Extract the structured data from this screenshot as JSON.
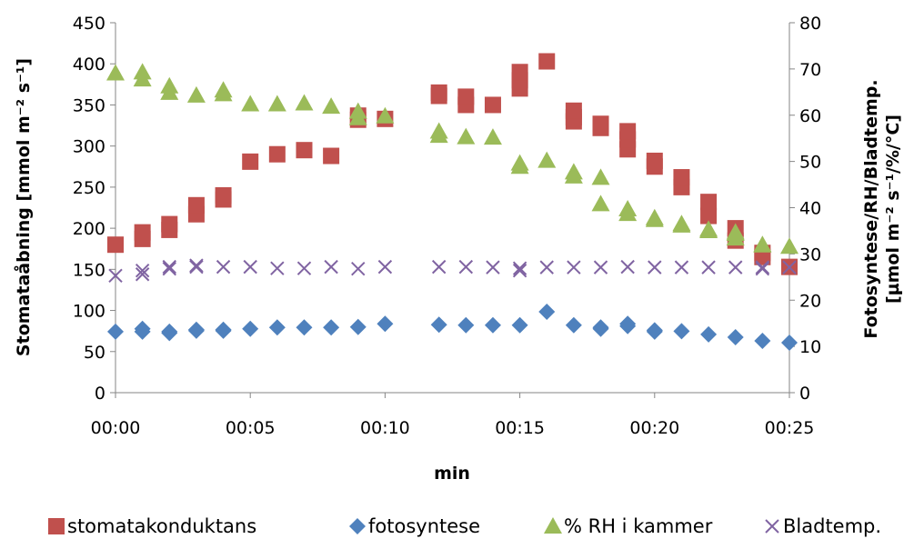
{
  "chart_data": {
    "type": "scatter",
    "xlabel": "min",
    "ylabel_left": "Stomataåbning [mmol m⁻² s⁻¹]",
    "ylabel_right_line1": "Fotosyntese/RH/Bladtemp.",
    "ylabel_right_line2": "[µmol m⁻² s⁻¹/%/°C]",
    "x_tick_labels": [
      "00:00",
      "00:05",
      "00:10",
      "00:15",
      "00:20",
      "00:25"
    ],
    "x_tick_minutes": [
      0,
      5,
      10,
      15,
      20,
      25
    ],
    "xlim_minutes": [
      0,
      25
    ],
    "ylim_left": [
      0,
      450
    ],
    "ylim_right": [
      0,
      80
    ],
    "y_left_ticks": [
      "0",
      "50",
      "100",
      "150",
      "200",
      "250",
      "300",
      "350",
      "400",
      "450"
    ],
    "y_right_ticks": [
      "0",
      "10",
      "20",
      "30",
      "40",
      "50",
      "60",
      "70",
      "80"
    ],
    "grid": false,
    "legend_position": "bottom",
    "series": [
      {
        "name": "stomatakonduktans",
        "axis": "left",
        "marker": "square",
        "color": "#c0504d",
        "points": [
          [
            0,
            180
          ],
          [
            1,
            187
          ],
          [
            1,
            195
          ],
          [
            2,
            198
          ],
          [
            2,
            205
          ],
          [
            3,
            217
          ],
          [
            3,
            228
          ],
          [
            4,
            235
          ],
          [
            4,
            240
          ],
          [
            5,
            281
          ],
          [
            6,
            290
          ],
          [
            7,
            295
          ],
          [
            8,
            288
          ],
          [
            9,
            332
          ],
          [
            9,
            337
          ],
          [
            10,
            333
          ],
          [
            12,
            361
          ],
          [
            12,
            365
          ],
          [
            13,
            350
          ],
          [
            13,
            360
          ],
          [
            14,
            350
          ],
          [
            15,
            370
          ],
          [
            15,
            380
          ],
          [
            15,
            390
          ],
          [
            16,
            403
          ],
          [
            17,
            330
          ],
          [
            17,
            335
          ],
          [
            17,
            343
          ],
          [
            18,
            322
          ],
          [
            18,
            327
          ],
          [
            19,
            296
          ],
          [
            19,
            308
          ],
          [
            19,
            318
          ],
          [
            20,
            275
          ],
          [
            20,
            282
          ],
          [
            21,
            250
          ],
          [
            21,
            262
          ],
          [
            22,
            215
          ],
          [
            22,
            232
          ],
          [
            23,
            185
          ],
          [
            23,
            200
          ],
          [
            24,
            165
          ],
          [
            24,
            170
          ],
          [
            25,
            153
          ]
        ]
      },
      {
        "name": "fotosyntese",
        "axis": "right",
        "marker": "diamond",
        "color": "#4f81bd",
        "points": [
          [
            0,
            13.2
          ],
          [
            1,
            13.2
          ],
          [
            1,
            13.8
          ],
          [
            2,
            12.9
          ],
          [
            2,
            13.2
          ],
          [
            3,
            13.4
          ],
          [
            3,
            13.6
          ],
          [
            4,
            13.4
          ],
          [
            4,
            13.6
          ],
          [
            5,
            13.8
          ],
          [
            6,
            14.1
          ],
          [
            7,
            14.1
          ],
          [
            8,
            14.1
          ],
          [
            9,
            14.2
          ],
          [
            10,
            14.9
          ],
          [
            12,
            14.7
          ],
          [
            13,
            14.6
          ],
          [
            14,
            14.6
          ],
          [
            15,
            14.6
          ],
          [
            16,
            17.5
          ],
          [
            17,
            14.6
          ],
          [
            18,
            13.8
          ],
          [
            18,
            14.1
          ],
          [
            19,
            14.4
          ],
          [
            19,
            14.9
          ],
          [
            20,
            13.2
          ],
          [
            20,
            13.5
          ],
          [
            21,
            13.3
          ],
          [
            22,
            12.6
          ],
          [
            23,
            12.0
          ],
          [
            24,
            11.2
          ],
          [
            25,
            10.8
          ]
        ]
      },
      {
        "name": "% RH i kammer",
        "axis": "right",
        "marker": "triangle",
        "color": "#9bbb59",
        "points": [
          [
            0,
            69.1
          ],
          [
            1,
            67.8
          ],
          [
            1,
            69.3
          ],
          [
            2,
            64.9
          ],
          [
            2,
            66.3
          ],
          [
            3,
            64.3
          ],
          [
            4,
            64.6
          ],
          [
            4,
            65.4
          ],
          [
            5,
            62.4
          ],
          [
            6,
            62.4
          ],
          [
            7,
            62.6
          ],
          [
            8,
            61.9
          ],
          [
            9,
            59.4
          ],
          [
            9,
            60.8
          ],
          [
            10,
            59.8
          ],
          [
            12,
            55.6
          ],
          [
            12,
            56.5
          ],
          [
            13,
            55.3
          ],
          [
            14,
            55.2
          ],
          [
            15,
            48.9
          ],
          [
            15,
            49.6
          ],
          [
            16,
            50.2
          ],
          [
            17,
            46.8
          ],
          [
            17,
            47.7
          ],
          [
            18,
            40.8
          ],
          [
            18,
            46.5
          ],
          [
            19,
            38.7
          ],
          [
            19,
            39.7
          ],
          [
            20,
            37.8
          ],
          [
            20,
            37.4
          ],
          [
            21,
            36.5
          ],
          [
            21,
            36.2
          ],
          [
            22,
            35.3
          ],
          [
            22,
            35.0
          ],
          [
            23,
            33.4
          ],
          [
            23,
            34.4
          ],
          [
            23,
            34.7
          ],
          [
            24,
            32.0
          ],
          [
            24,
            31.9
          ],
          [
            25,
            31.6
          ]
        ]
      },
      {
        "name": "Bladtemp.",
        "axis": "right",
        "marker": "x",
        "color": "#8064a2",
        "points": [
          [
            0,
            25.3
          ],
          [
            1,
            25.6
          ],
          [
            1,
            26.4
          ],
          [
            2,
            26.8
          ],
          [
            2,
            27.2
          ],
          [
            3,
            27.2
          ],
          [
            3,
            27.5
          ],
          [
            4,
            27.2
          ],
          [
            5,
            27.2
          ],
          [
            6,
            26.9
          ],
          [
            7,
            26.9
          ],
          [
            8,
            27.2
          ],
          [
            9,
            26.8
          ],
          [
            10,
            27.2
          ],
          [
            12,
            27.2
          ],
          [
            13,
            27.2
          ],
          [
            14,
            27.1
          ],
          [
            15,
            26.9
          ],
          [
            15,
            26.4
          ],
          [
            16,
            27.1
          ],
          [
            17,
            27.1
          ],
          [
            18,
            27.1
          ],
          [
            19,
            27.2
          ],
          [
            20,
            27.1
          ],
          [
            21,
            27.1
          ],
          [
            22,
            27.1
          ],
          [
            23,
            27.1
          ],
          [
            24,
            27.1
          ],
          [
            24,
            26.8
          ],
          [
            25,
            27.1
          ]
        ]
      }
    ]
  },
  "legend": {
    "items": [
      {
        "label": "stomatakonduktans",
        "marker": "square",
        "color": "#c0504d"
      },
      {
        "label": "fotosyntese",
        "marker": "diamond",
        "color": "#4f81bd"
      },
      {
        "label": "% RH i kammer",
        "marker": "triangle",
        "color": "#9bbb59"
      },
      {
        "label": "Bladtemp.",
        "marker": "x",
        "color": "#8064a2"
      }
    ]
  }
}
